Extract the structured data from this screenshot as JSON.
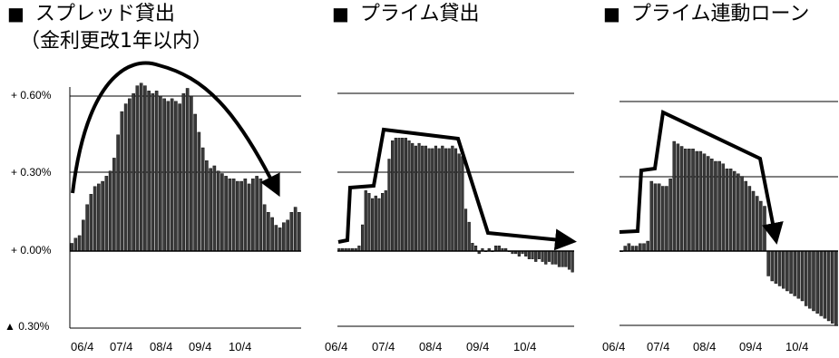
{
  "chart_data": [
    {
      "type": "bar",
      "title": "スプレッド貸出",
      "subtitle": "（金利更改1年以内）",
      "y_tick_labels": [
        "+ 0.60%",
        "+ 0.30%",
        "+ 0.00%",
        "▲ 0.30%"
      ],
      "y_ticks": [
        0.6,
        0.3,
        0.0,
        -0.3
      ],
      "ylim": [
        -0.3,
        0.62
      ],
      "x_tick_labels": [
        "06/4",
        "07/4",
        "08/4",
        "09/4",
        "10/4"
      ],
      "grid": true,
      "trend_arrow": "arc",
      "values": [
        0.03,
        0.05,
        0.06,
        0.12,
        0.18,
        0.22,
        0.25,
        0.26,
        0.27,
        0.29,
        0.31,
        0.36,
        0.45,
        0.54,
        0.57,
        0.59,
        0.61,
        0.64,
        0.65,
        0.64,
        0.62,
        0.61,
        0.62,
        0.6,
        0.59,
        0.58,
        0.59,
        0.58,
        0.57,
        0.61,
        0.63,
        0.6,
        0.53,
        0.46,
        0.4,
        0.35,
        0.32,
        0.33,
        0.31,
        0.3,
        0.29,
        0.28,
        0.28,
        0.27,
        0.27,
        0.28,
        0.26,
        0.28,
        0.29,
        0.28,
        0.18,
        0.15,
        0.13,
        0.1,
        0.09,
        0.11,
        0.12,
        0.15,
        0.17,
        0.15
      ]
    },
    {
      "type": "bar",
      "title": "プライム貸出",
      "x_tick_labels": [
        "06/4",
        "07/4",
        "08/4",
        "09/4",
        "10/4"
      ],
      "grid": true,
      "trend_arrow": "polyline",
      "values": [
        0.01,
        0.01,
        0.01,
        0.01,
        0.01,
        0.01,
        0.02,
        0.1,
        0.23,
        0.22,
        0.2,
        0.21,
        0.2,
        0.22,
        0.23,
        0.35,
        0.42,
        0.43,
        0.43,
        0.43,
        0.43,
        0.42,
        0.41,
        0.4,
        0.41,
        0.4,
        0.4,
        0.39,
        0.39,
        0.4,
        0.39,
        0.4,
        0.39,
        0.39,
        0.4,
        0.39,
        0.37,
        0.36,
        0.16,
        0.11,
        0.03,
        0.02,
        -0.01,
        0.01,
        0.0,
        0.01,
        0.0,
        0.02,
        0.02,
        0.01,
        0.01,
        0.0,
        -0.01,
        -0.01,
        -0.02,
        -0.01,
        -0.02,
        -0.03,
        -0.03,
        -0.04,
        -0.03,
        -0.04,
        -0.05,
        -0.04,
        -0.05,
        -0.05,
        -0.06,
        -0.06,
        -0.06,
        -0.07,
        -0.08
      ]
    },
    {
      "type": "bar",
      "title": "プライム連動ローン",
      "x_tick_labels": [
        "06/4",
        "07/4",
        "08/4",
        "09/4",
        "10/4"
      ],
      "grid": true,
      "trend_arrow": "polyline",
      "values": [
        0.0,
        0.02,
        0.03,
        0.02,
        0.02,
        0.03,
        0.03,
        0.04,
        0.28,
        0.27,
        0.27,
        0.26,
        0.26,
        0.29,
        0.44,
        0.43,
        0.42,
        0.41,
        0.41,
        0.41,
        0.4,
        0.4,
        0.39,
        0.38,
        0.37,
        0.36,
        0.36,
        0.35,
        0.33,
        0.33,
        0.32,
        0.31,
        0.3,
        0.28,
        0.26,
        0.24,
        0.22,
        0.2,
        0.18,
        -0.1,
        -0.12,
        -0.13,
        -0.14,
        -0.15,
        -0.16,
        -0.17,
        -0.18,
        -0.19,
        -0.2,
        -0.22,
        -0.23,
        -0.24,
        -0.25,
        -0.26,
        -0.27,
        -0.28,
        -0.29,
        -0.3
      ]
    }
  ]
}
